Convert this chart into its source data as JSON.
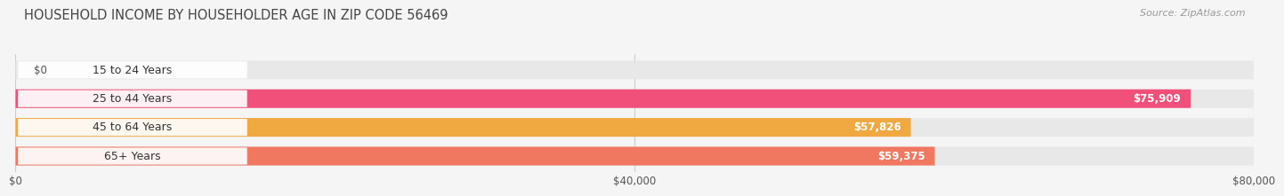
{
  "title": "HOUSEHOLD INCOME BY HOUSEHOLDER AGE IN ZIP CODE 56469",
  "source": "Source: ZipAtlas.com",
  "categories": [
    "15 to 24 Years",
    "25 to 44 Years",
    "45 to 64 Years",
    "65+ Years"
  ],
  "values": [
    0,
    75909,
    57826,
    59375
  ],
  "bar_colors": [
    "#a8a8d8",
    "#f0507a",
    "#f0a840",
    "#f07860"
  ],
  "value_labels": [
    "$0",
    "$75,909",
    "$57,826",
    "$59,375"
  ],
  "x_max": 80000,
  "x_ticks": [
    0,
    40000,
    80000
  ],
  "x_tick_labels": [
    "$0",
    "$40,000",
    "$80,000"
  ],
  "background_color": "#f5f5f5",
  "bar_bg_color": "#e8e8e8",
  "title_fontsize": 10.5,
  "source_fontsize": 8,
  "label_fontsize": 9,
  "value_fontsize": 8.5,
  "tick_fontsize": 8.5
}
